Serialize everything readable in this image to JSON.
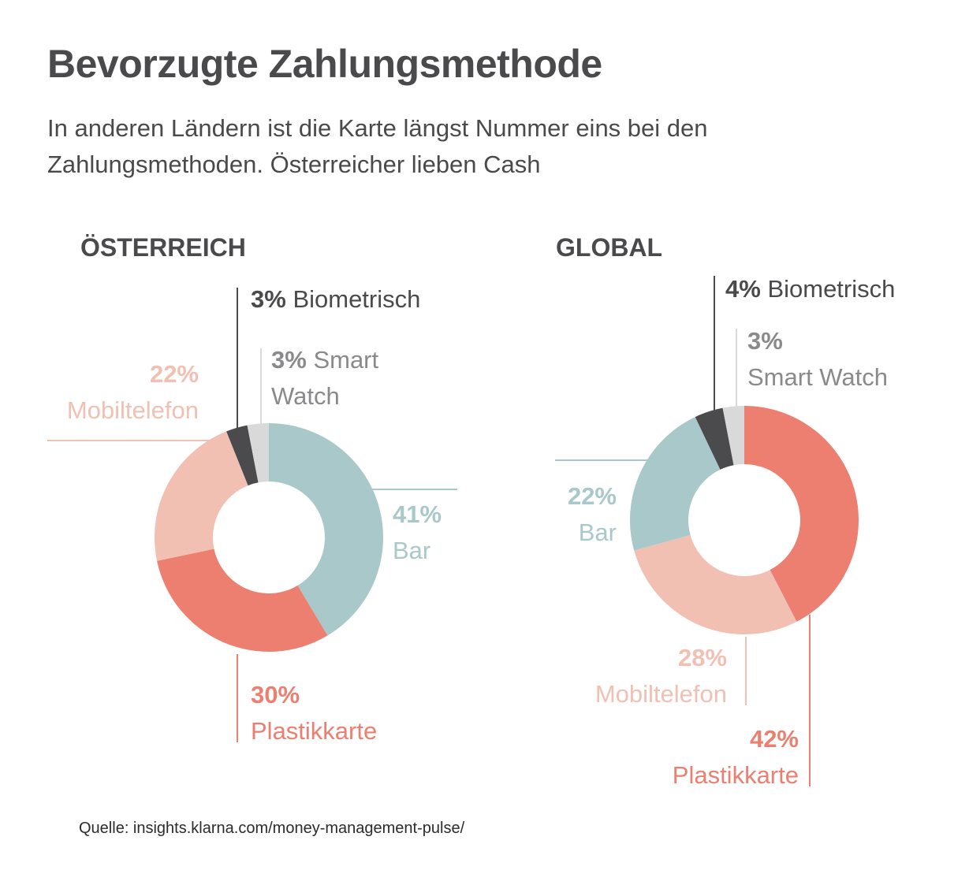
{
  "title": "Bevorzugte Zahlungsmethode",
  "subtitle": "In anderen Ländern ist die Karte längst Nummer eins bei den Zahlungsmethoden. Österreicher lieben Cash",
  "source": "Quelle: insights.klarna.com/money-management-pulse/",
  "colors": {
    "bar": "#a8c8c9",
    "plastikkarte": "#ec7f70",
    "mobiltelefon": "#f1c0b3",
    "biometrisch": "#4b4b4d",
    "smartwatch": "#d9d9d9"
  },
  "chart_data": [
    {
      "type": "pie",
      "title": "ÖSTERREICH",
      "categories": [
        "Bar",
        "Plastikkarte",
        "Mobiltelefon",
        "Biometrisch",
        "Smart Watch"
      ],
      "values": [
        41,
        30,
        22,
        3,
        3
      ],
      "value_labels": [
        "41%",
        "30%",
        "22%",
        "3%",
        "3%"
      ]
    },
    {
      "type": "pie",
      "title": "GLOBAL",
      "categories": [
        "Plastikkarte",
        "Mobiltelefon",
        "Bar",
        "Biometrisch",
        "Smart Watch"
      ],
      "values": [
        42,
        28,
        22,
        4,
        3
      ],
      "value_labels": [
        "42%",
        "28%",
        "22%",
        "4%",
        "3%"
      ]
    }
  ]
}
